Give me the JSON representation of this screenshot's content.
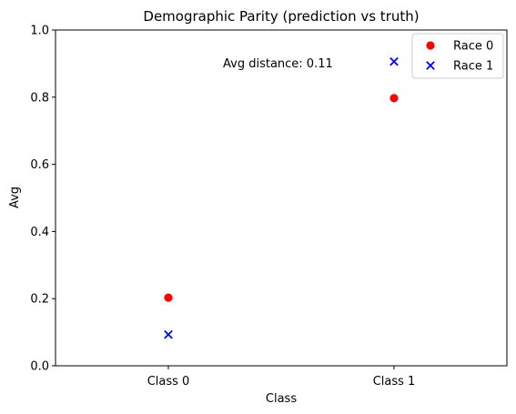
{
  "chart_data": {
    "type": "scatter",
    "title": "Demographic Parity (prediction vs truth)",
    "xlabel": "Class",
    "ylabel": "Avg",
    "categories": [
      "Class 0",
      "Class 1"
    ],
    "ylim": [
      0.0,
      1.0
    ],
    "yticks": [
      "0.0",
      "0.2",
      "0.4",
      "0.6",
      "0.8",
      "1.0"
    ],
    "grid": false,
    "legend_position": "top-right",
    "annotation": "Avg distance: 0.11",
    "series": [
      {
        "name": "Race 0",
        "marker": "circle",
        "color": "#ff0000",
        "values": [
          0.203,
          0.797
        ]
      },
      {
        "name": "Race 1",
        "marker": "x",
        "color": "#0000ff",
        "values": [
          0.093,
          0.906
        ]
      }
    ]
  }
}
